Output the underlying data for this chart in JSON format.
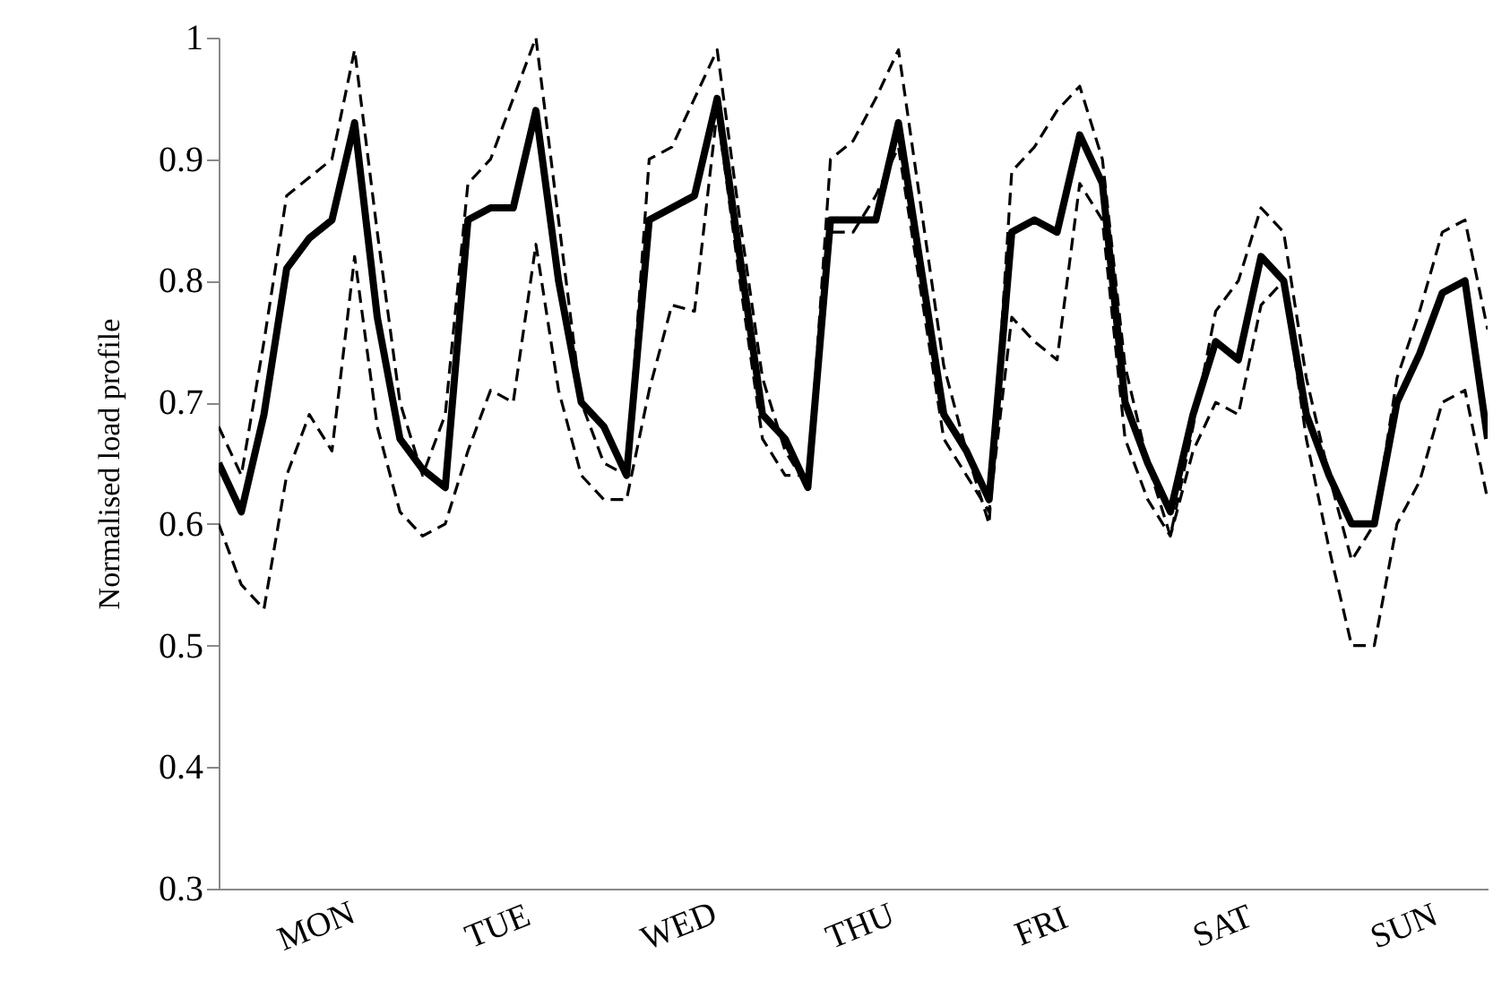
{
  "chart_data": {
    "type": "line",
    "ylabel": "Normalised load profile",
    "categories": [
      null,
      null,
      null,
      null,
      "MON",
      null,
      null,
      null,
      null,
      null,
      null,
      null,
      "TUE",
      null,
      null,
      null,
      null,
      null,
      null,
      null,
      "WED",
      null,
      null,
      null,
      null,
      null,
      null,
      null,
      "THU",
      null,
      null,
      null,
      null,
      null,
      null,
      null,
      "FRI",
      null,
      null,
      null,
      null,
      null,
      null,
      null,
      "SAT",
      null,
      null,
      null,
      null,
      null,
      null,
      null,
      "SUN",
      null,
      null,
      null,
      null
    ],
    "ylim": [
      0.3,
      1
    ],
    "yticks": [
      0.3,
      0.4,
      0.5,
      0.6,
      0.7,
      0.8,
      0.9,
      1
    ],
    "grid": false,
    "marker": "none",
    "series": [
      {
        "color": "#000000",
        "line_style": "dashed",
        "values": [
          0.68,
          0.64,
          0.75,
          0.87,
          0.885,
          0.9,
          0.99,
          0.84,
          0.7,
          0.64,
          0.69,
          0.88,
          0.9,
          0.95,
          1.0,
          0.85,
          0.7,
          0.65,
          0.64,
          0.9,
          0.91,
          0.95,
          0.99,
          0.85,
          0.72,
          0.66,
          0.63,
          0.9,
          0.915,
          0.95,
          0.99,
          0.86,
          0.73,
          0.66,
          0.6,
          0.89,
          0.91,
          0.94,
          0.96,
          0.9,
          0.73,
          0.65,
          0.59,
          0.68,
          0.775,
          0.8,
          0.86,
          0.84,
          0.72,
          0.64,
          0.57,
          0.6,
          0.72,
          0.775,
          0.84,
          0.85,
          0.76
        ]
      },
      {
        "color": "#000000",
        "line_style": "dashed",
        "values": [
          0.6,
          0.55,
          0.53,
          0.64,
          0.69,
          0.66,
          0.82,
          0.68,
          0.61,
          0.59,
          0.6,
          0.66,
          0.71,
          0.7,
          0.83,
          0.71,
          0.64,
          0.62,
          0.62,
          0.71,
          0.78,
          0.775,
          0.94,
          0.8,
          0.67,
          0.64,
          0.64,
          0.84,
          0.84,
          0.87,
          0.91,
          0.79,
          0.67,
          0.64,
          0.61,
          0.77,
          0.75,
          0.735,
          0.88,
          0.85,
          0.67,
          0.62,
          0.59,
          0.66,
          0.7,
          0.69,
          0.78,
          0.8,
          0.67,
          0.58,
          0.5,
          0.5,
          0.6,
          0.635,
          0.7,
          0.71,
          0.62
        ]
      },
      {
        "color": "#000000",
        "line_style": "solid",
        "values": [
          0.65,
          0.61,
          0.69,
          0.81,
          0.835,
          0.85,
          0.93,
          0.77,
          0.67,
          0.645,
          0.63,
          0.85,
          0.86,
          0.86,
          0.94,
          0.8,
          0.7,
          0.68,
          0.64,
          0.85,
          0.86,
          0.87,
          0.95,
          0.82,
          0.69,
          0.67,
          0.63,
          0.85,
          0.85,
          0.85,
          0.93,
          0.81,
          0.69,
          0.66,
          0.62,
          0.84,
          0.85,
          0.84,
          0.92,
          0.88,
          0.7,
          0.65,
          0.61,
          0.69,
          0.75,
          0.735,
          0.82,
          0.8,
          0.69,
          0.64,
          0.6,
          0.6,
          0.7,
          0.74,
          0.79,
          0.8,
          0.67
        ]
      }
    ]
  }
}
